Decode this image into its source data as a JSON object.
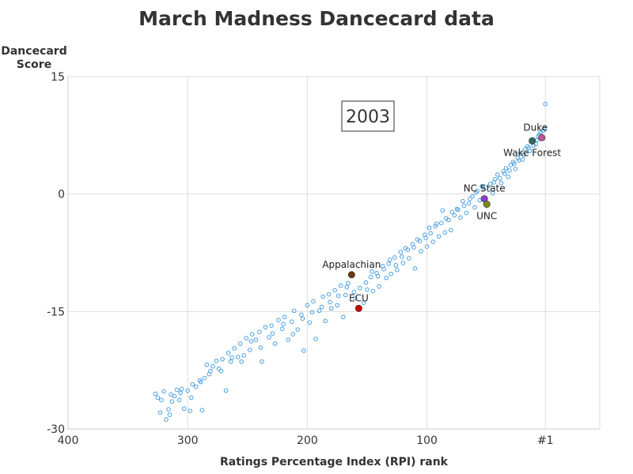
{
  "chart_data": {
    "type": "scatter",
    "title": "March Madness Dancecard data",
    "ylabel_lines": [
      "Dancecard",
      "Score"
    ],
    "xlabel": "Ratings Percentage Index (RPI) rank",
    "annotation_year": "2003",
    "xlim": [
      400,
      0
    ],
    "ylim": [
      -30,
      15
    ],
    "x_ticks": [
      {
        "value": 400,
        "label": "400"
      },
      {
        "value": 300,
        "label": "300"
      },
      {
        "value": 200,
        "label": "200"
      },
      {
        "value": 100,
        "label": "100"
      },
      {
        "value": 1,
        "label": "#1"
      }
    ],
    "y_ticks": [
      {
        "value": 15,
        "label": "15"
      },
      {
        "value": 0,
        "label": "0"
      },
      {
        "value": -15,
        "label": "-15"
      },
      {
        "value": -30,
        "label": "-30"
      }
    ],
    "grid": true,
    "point_color": "#4a9fe0",
    "highlighted": [
      {
        "name": "Duke",
        "x": 4,
        "y": 7.2,
        "color": "#c0538f",
        "label_pos": "above-left"
      },
      {
        "name": "Wake Forest",
        "x": 12,
        "y": 6.8,
        "color": "#2f6b5f",
        "label_pos": "below"
      },
      {
        "name": "NC State",
        "x": 52,
        "y": -0.6,
        "color": "#8e3bd6",
        "label_pos": "above"
      },
      {
        "name": "UNC",
        "x": 50,
        "y": -1.3,
        "color": "#7a8a1a",
        "label_pos": "below"
      },
      {
        "name": "Appalachian",
        "x": 163,
        "y": -10.3,
        "color": "#6b3a10",
        "label_pos": "above"
      },
      {
        "name": "ECU",
        "x": 157,
        "y": -14.6,
        "color": "#cc0000",
        "label_pos": "above"
      }
    ],
    "series": [
      {
        "points": [
          [
            327,
            -25.5
          ],
          [
            325,
            -26.0
          ],
          [
            322,
            -26.3
          ],
          [
            320,
            -25.2
          ],
          [
            318,
            -28.8
          ],
          [
            316,
            -27.5
          ],
          [
            315,
            -28.2
          ],
          [
            313,
            -26.5
          ],
          [
            311,
            -25.8
          ],
          [
            309,
            -25.0
          ],
          [
            307,
            -26.3
          ],
          [
            305,
            -24.9
          ],
          [
            303,
            -27.4
          ],
          [
            300,
            -25.1
          ],
          [
            298,
            -27.7
          ],
          [
            296,
            -24.3
          ],
          [
            293,
            -24.6
          ],
          [
            290,
            -23.8
          ],
          [
            288,
            -27.6
          ],
          [
            286,
            -23.5
          ],
          [
            284,
            -21.8
          ],
          [
            281,
            -22.6
          ],
          [
            279,
            -22.0
          ],
          [
            276,
            -21.3
          ],
          [
            274,
            -22.3
          ],
          [
            271,
            -21.1
          ],
          [
            268,
            -25.1
          ],
          [
            266,
            -20.3
          ],
          [
            264,
            -21.4
          ],
          [
            261,
            -19.7
          ],
          [
            258,
            -20.8
          ],
          [
            256,
            -19.1
          ],
          [
            253,
            -20.6
          ],
          [
            251,
            -18.4
          ],
          [
            248,
            -19.9
          ],
          [
            246,
            -17.9
          ],
          [
            243,
            -18.6
          ],
          [
            240,
            -17.6
          ],
          [
            238,
            -21.4
          ],
          [
            235,
            -17.0
          ],
          [
            232,
            -18.3
          ],
          [
            230,
            -16.8
          ],
          [
            227,
            -19.1
          ],
          [
            224,
            -16.1
          ],
          [
            221,
            -17.2
          ],
          [
            219,
            -15.7
          ],
          [
            216,
            -18.6
          ],
          [
            213,
            -16.3
          ],
          [
            211,
            -14.9
          ],
          [
            208,
            -17.3
          ],
          [
            205,
            -15.4
          ],
          [
            203,
            -20.0
          ],
          [
            200,
            -14.2
          ],
          [
            198,
            -16.4
          ],
          [
            195,
            -13.7
          ],
          [
            193,
            -18.5
          ],
          [
            190,
            -14.9
          ],
          [
            187,
            -13.1
          ],
          [
            185,
            -16.2
          ],
          [
            182,
            -12.8
          ],
          [
            180,
            -14.6
          ],
          [
            177,
            -12.3
          ],
          [
            175,
            -14.2
          ],
          [
            172,
            -11.7
          ],
          [
            170,
            -15.7
          ],
          [
            168,
            -12.9
          ],
          [
            166,
            -11.4
          ],
          [
            160,
            -13.3
          ],
          [
            153,
            -13.9
          ],
          [
            150,
            -12.2
          ],
          [
            147,
            -10.6
          ],
          [
            145,
            -12.4
          ],
          [
            142,
            -10.1
          ],
          [
            140,
            -11.8
          ],
          [
            137,
            -9.2
          ],
          [
            134,
            -10.7
          ],
          [
            132,
            -8.9
          ],
          [
            130,
            -10.2
          ],
          [
            127,
            -8.1
          ],
          [
            125,
            -9.7
          ],
          [
            122,
            -7.4
          ],
          [
            120,
            -8.8
          ],
          [
            118,
            -6.9
          ],
          [
            115,
            -8.2
          ],
          [
            112,
            -6.4
          ],
          [
            110,
            -9.5
          ],
          [
            108,
            -5.8
          ],
          [
            105,
            -7.3
          ],
          [
            102,
            -5.2
          ],
          [
            100,
            -6.7
          ],
          [
            98,
            -4.3
          ],
          [
            95,
            -6.1
          ],
          [
            92,
            -3.8
          ],
          [
            90,
            -5.4
          ],
          [
            87,
            -2.1
          ],
          [
            85,
            -4.9
          ],
          [
            82,
            -3.3
          ],
          [
            80,
            -4.6
          ],
          [
            77,
            -2.7
          ],
          [
            75,
            -1.9
          ],
          [
            72,
            -3.0
          ],
          [
            70,
            -0.9
          ],
          [
            67,
            -2.4
          ],
          [
            65,
            -1.2
          ],
          [
            62,
            -0.3
          ],
          [
            60,
            -1.7
          ],
          [
            58,
            0.4
          ],
          [
            56,
            -0.8
          ],
          [
            54,
            1.0
          ],
          [
            47,
            1.3
          ],
          [
            45,
            0.1
          ],
          [
            43,
            1.9
          ],
          [
            41,
            2.5
          ],
          [
            38,
            1.4
          ],
          [
            36,
            2.9
          ],
          [
            34,
            3.3
          ],
          [
            32,
            2.2
          ],
          [
            30,
            3.7
          ],
          [
            28,
            4.1
          ],
          [
            26,
            3.2
          ],
          [
            24,
            4.6
          ],
          [
            22,
            5.2
          ],
          [
            20,
            4.4
          ],
          [
            18,
            5.7
          ],
          [
            16,
            6.1
          ],
          [
            14,
            5.5
          ],
          [
            9,
            6.4
          ],
          [
            7,
            7.4
          ],
          [
            5,
            7.9
          ],
          [
            3,
            8.1
          ],
          [
            2,
            8.4
          ],
          [
            1,
            11.5
          ],
          [
            323,
            -27.9
          ],
          [
            314,
            -25.6
          ],
          [
            306,
            -25.4
          ],
          [
            297,
            -26.0
          ],
          [
            289,
            -24.0
          ],
          [
            282,
            -23.0
          ],
          [
            272,
            -22.6
          ],
          [
            263,
            -20.9
          ],
          [
            255,
            -21.4
          ],
          [
            247,
            -18.8
          ],
          [
            239,
            -19.6
          ],
          [
            229,
            -17.8
          ],
          [
            220,
            -16.6
          ],
          [
            212,
            -17.9
          ],
          [
            204,
            -15.9
          ],
          [
            196,
            -15.1
          ],
          [
            188,
            -14.4
          ],
          [
            181,
            -13.8
          ],
          [
            174,
            -13.0
          ],
          [
            167,
            -11.9
          ],
          [
            161,
            -12.5
          ],
          [
            156,
            -12.0
          ],
          [
            151,
            -11.3
          ],
          [
            146,
            -9.9
          ],
          [
            141,
            -10.5
          ],
          [
            136,
            -9.6
          ],
          [
            131,
            -8.4
          ],
          [
            126,
            -9.1
          ],
          [
            121,
            -8.0
          ],
          [
            116,
            -7.1
          ],
          [
            111,
            -6.8
          ],
          [
            106,
            -6.0
          ],
          [
            101,
            -5.6
          ],
          [
            97,
            -5.0
          ],
          [
            93,
            -4.1
          ],
          [
            88,
            -3.7
          ],
          [
            84,
            -3.1
          ],
          [
            79,
            -2.3
          ],
          [
            74,
            -2.0
          ],
          [
            69,
            -1.5
          ],
          [
            64,
            -0.6
          ],
          [
            59,
            0.2
          ],
          [
            53,
            0.8
          ],
          [
            48,
            0.6
          ],
          [
            44,
            1.5
          ],
          [
            39,
            2.0
          ],
          [
            35,
            2.6
          ],
          [
            31,
            3.0
          ],
          [
            27,
            3.9
          ],
          [
            23,
            4.3
          ],
          [
            19,
            5.0
          ],
          [
            15,
            5.9
          ],
          [
            11,
            6.2
          ],
          [
            8,
            6.9
          ],
          [
            6,
            7.6
          ]
        ]
      }
    ]
  }
}
